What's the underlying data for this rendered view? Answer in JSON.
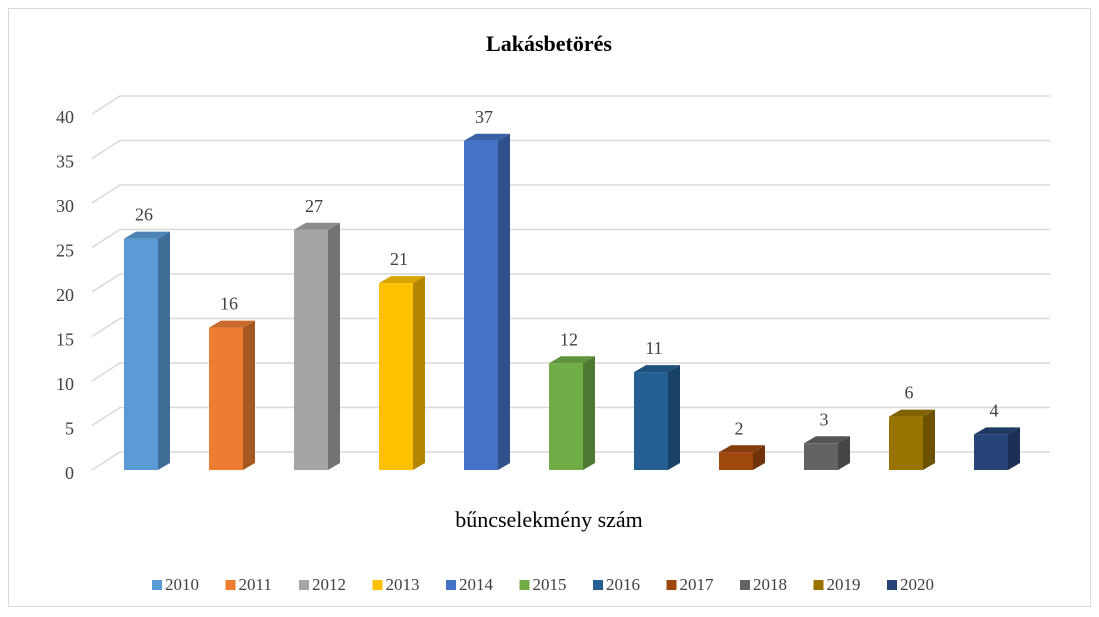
{
  "chart_data": {
    "type": "bar",
    "title": "Lakásbetörés",
    "categories": [
      "bűncselekmény szám"
    ],
    "series": [
      {
        "name": "2010",
        "color": "#5b9bd5",
        "values": [
          26
        ]
      },
      {
        "name": "2011",
        "color": "#ed7d31",
        "values": [
          16
        ]
      },
      {
        "name": "2012",
        "color": "#a5a5a5",
        "values": [
          27
        ]
      },
      {
        "name": "2013",
        "color": "#ffc000",
        "values": [
          21
        ]
      },
      {
        "name": "2014",
        "color": "#4472c4",
        "values": [
          37
        ]
      },
      {
        "name": "2015",
        "color": "#70ad47",
        "values": [
          12
        ]
      },
      {
        "name": "2016",
        "color": "#255e91",
        "values": [
          11
        ]
      },
      {
        "name": "2017",
        "color": "#9e480e",
        "values": [
          2
        ]
      },
      {
        "name": "2018",
        "color": "#636363",
        "values": [
          3
        ]
      },
      {
        "name": "2019",
        "color": "#997300",
        "values": [
          6
        ]
      },
      {
        "name": "2020",
        "color": "#264478",
        "values": [
          4
        ]
      }
    ],
    "ylim": [
      0,
      40
    ],
    "yticks": [
      0,
      5,
      10,
      15,
      20,
      25,
      30,
      35,
      40
    ],
    "grid": true,
    "legend": "bottom"
  }
}
